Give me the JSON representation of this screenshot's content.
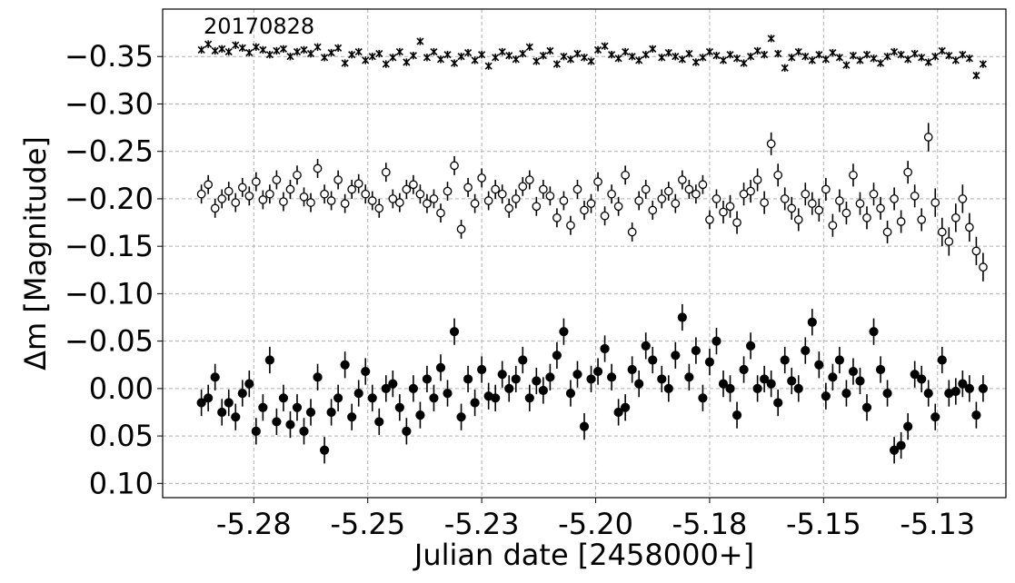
{
  "chart_data": {
    "type": "scatter",
    "xlabel": "Julian date [2458000+]",
    "ylabel": "Δm [Magnitude]",
    "annotation": "20170828",
    "xlim": [
      -5.3,
      -5.115
    ],
    "ylim": [
      0.115,
      -0.4
    ],
    "y_inverted": true,
    "grid": true,
    "x_ticks": [
      -5.28,
      -5.255,
      -5.23,
      -5.205,
      -5.18,
      -5.155,
      -5.13
    ],
    "x_tick_labels": [
      "-5.28",
      "-5.25",
      "-5.23",
      "-5.20",
      "-5.18",
      "-5.15",
      "-5.13"
    ],
    "y_ticks": [
      -0.35,
      -0.3,
      -0.25,
      -0.2,
      -0.15,
      -0.1,
      -0.05,
      0.0,
      0.05,
      0.1
    ],
    "y_tick_labels": [
      "−0.35",
      "−0.30",
      "−0.25",
      "−0.20",
      "−0.15",
      "−0.10",
      "−0.05",
      "0.00",
      "0.05",
      "0.10"
    ],
    "series": [
      {
        "marker": "x",
        "color": "#000000",
        "x": [
          -5.2915,
          -5.29,
          -5.2885,
          -5.287,
          -5.2855,
          -5.284,
          -5.2825,
          -5.281,
          -5.2795,
          -5.278,
          -5.2765,
          -5.275,
          -5.2735,
          -5.272,
          -5.2705,
          -5.269,
          -5.2675,
          -5.266,
          -5.2645,
          -5.263,
          -5.2615,
          -5.26,
          -5.2585,
          -5.257,
          -5.2555,
          -5.254,
          -5.2525,
          -5.251,
          -5.2495,
          -5.248,
          -5.2465,
          -5.245,
          -5.2435,
          -5.242,
          -5.2405,
          -5.239,
          -5.2375,
          -5.236,
          -5.2345,
          -5.233,
          -5.2315,
          -5.23,
          -5.2285,
          -5.227,
          -5.2255,
          -5.224,
          -5.2225,
          -5.221,
          -5.2195,
          -5.218,
          -5.2165,
          -5.215,
          -5.2135,
          -5.212,
          -5.2105,
          -5.209,
          -5.2075,
          -5.206,
          -5.2045,
          -5.203,
          -5.2015,
          -5.2,
          -5.1985,
          -5.197,
          -5.1955,
          -5.194,
          -5.1925,
          -5.1905,
          -5.189,
          -5.1875,
          -5.186,
          -5.1845,
          -5.183,
          -5.1815,
          -5.18,
          -5.1785,
          -5.177,
          -5.1755,
          -5.174,
          -5.1725,
          -5.171,
          -5.1695,
          -5.168,
          -5.1665,
          -5.165,
          -5.1635,
          -5.162,
          -5.1605,
          -5.159,
          -5.1575,
          -5.156,
          -5.1545,
          -5.153,
          -5.1515,
          -5.15,
          -5.1485,
          -5.147,
          -5.1455,
          -5.144,
          -5.1425,
          -5.141,
          -5.1395,
          -5.138,
          -5.1365,
          -5.135,
          -5.1335,
          -5.132,
          -5.1305,
          -5.129,
          -5.1275,
          -5.126,
          -5.1245,
          -5.123,
          -5.1215,
          -5.12
        ],
        "y": [
          -0.357,
          -0.363,
          -0.356,
          -0.358,
          -0.355,
          -0.362,
          -0.359,
          -0.354,
          -0.36,
          -0.357,
          -0.352,
          -0.356,
          -0.358,
          -0.35,
          -0.355,
          -0.357,
          -0.353,
          -0.36,
          -0.349,
          -0.354,
          -0.359,
          -0.343,
          -0.352,
          -0.355,
          -0.346,
          -0.35,
          -0.353,
          -0.342,
          -0.349,
          -0.355,
          -0.344,
          -0.351,
          -0.366,
          -0.349,
          -0.355,
          -0.347,
          -0.352,
          -0.343,
          -0.35,
          -0.354,
          -0.346,
          -0.352,
          -0.34,
          -0.349,
          -0.355,
          -0.351,
          -0.347,
          -0.353,
          -0.36,
          -0.345,
          -0.351,
          -0.356,
          -0.342,
          -0.35,
          -0.347,
          -0.353,
          -0.349,
          -0.345,
          -0.357,
          -0.361,
          -0.352,
          -0.348,
          -0.355,
          -0.35,
          -0.346,
          -0.352,
          -0.358,
          -0.349,
          -0.354,
          -0.35,
          -0.347,
          -0.353,
          -0.344,
          -0.349,
          -0.355,
          -0.351,
          -0.346,
          -0.352,
          -0.348,
          -0.343,
          -0.35,
          -0.356,
          -0.352,
          -0.369,
          -0.353,
          -0.338,
          -0.349,
          -0.355,
          -0.35,
          -0.346,
          -0.352,
          -0.347,
          -0.354,
          -0.349,
          -0.341,
          -0.351,
          -0.346,
          -0.352,
          -0.348,
          -0.343,
          -0.35,
          -0.355,
          -0.352,
          -0.347,
          -0.353,
          -0.349,
          -0.344,
          -0.35,
          -0.356,
          -0.351,
          -0.346,
          -0.352,
          -0.348,
          -0.33,
          -0.342
        ],
        "yerr": [
          0.004,
          0.004,
          0.004,
          0.004,
          0.004,
          0.004,
          0.004,
          0.004,
          0.004,
          0.004,
          0.004,
          0.004,
          0.004,
          0.004,
          0.004,
          0.004,
          0.004,
          0.004,
          0.004,
          0.004,
          0.004,
          0.004,
          0.004,
          0.004,
          0.004,
          0.004,
          0.004,
          0.004,
          0.004,
          0.004,
          0.004,
          0.004,
          0.004,
          0.004,
          0.004,
          0.004,
          0.004,
          0.004,
          0.004,
          0.004,
          0.004,
          0.004,
          0.004,
          0.004,
          0.004,
          0.004,
          0.004,
          0.004,
          0.004,
          0.004,
          0.004,
          0.004,
          0.004,
          0.004,
          0.004,
          0.004,
          0.004,
          0.004,
          0.004,
          0.004,
          0.004,
          0.004,
          0.004,
          0.004,
          0.004,
          0.004,
          0.004,
          0.004,
          0.004,
          0.004,
          0.004,
          0.004,
          0.004,
          0.004,
          0.004,
          0.004,
          0.004,
          0.004,
          0.004,
          0.004,
          0.004,
          0.004,
          0.004,
          0.004,
          0.004,
          0.004,
          0.004,
          0.004,
          0.004,
          0.004,
          0.004,
          0.004,
          0.004,
          0.004,
          0.004,
          0.004,
          0.004,
          0.004,
          0.004,
          0.004,
          0.004,
          0.004,
          0.004,
          0.004,
          0.004,
          0.004,
          0.004,
          0.004,
          0.004,
          0.004,
          0.004,
          0.004,
          0.004,
          0.004,
          0.004
        ]
      },
      {
        "marker": "o-open",
        "color": "#000000",
        "x": [
          -5.2915,
          -5.29,
          -5.2885,
          -5.287,
          -5.2855,
          -5.284,
          -5.2825,
          -5.281,
          -5.2795,
          -5.278,
          -5.2765,
          -5.275,
          -5.2735,
          -5.272,
          -5.2705,
          -5.269,
          -5.2675,
          -5.266,
          -5.2645,
          -5.263,
          -5.2615,
          -5.26,
          -5.2585,
          -5.257,
          -5.2555,
          -5.254,
          -5.2525,
          -5.251,
          -5.2495,
          -5.248,
          -5.2465,
          -5.245,
          -5.2435,
          -5.242,
          -5.2405,
          -5.239,
          -5.2375,
          -5.236,
          -5.2345,
          -5.233,
          -5.2315,
          -5.23,
          -5.2285,
          -5.227,
          -5.2255,
          -5.224,
          -5.2225,
          -5.221,
          -5.2195,
          -5.218,
          -5.2165,
          -5.215,
          -5.2135,
          -5.212,
          -5.2105,
          -5.209,
          -5.2075,
          -5.206,
          -5.2045,
          -5.203,
          -5.2015,
          -5.2,
          -5.1985,
          -5.197,
          -5.1955,
          -5.194,
          -5.1925,
          -5.1905,
          -5.189,
          -5.1875,
          -5.186,
          -5.1845,
          -5.183,
          -5.1815,
          -5.18,
          -5.1785,
          -5.177,
          -5.1755,
          -5.174,
          -5.1725,
          -5.171,
          -5.1695,
          -5.168,
          -5.1665,
          -5.165,
          -5.1635,
          -5.162,
          -5.1605,
          -5.159,
          -5.1575,
          -5.156,
          -5.1545,
          -5.153,
          -5.1515,
          -5.15,
          -5.1485,
          -5.147,
          -5.1455,
          -5.144,
          -5.1425,
          -5.141,
          -5.1395,
          -5.138,
          -5.1365,
          -5.135,
          -5.1335,
          -5.132,
          -5.1305,
          -5.129,
          -5.1275,
          -5.126,
          -5.1245,
          -5.123,
          -5.1215,
          -5.12
        ],
        "y": [
          -0.205,
          -0.215,
          -0.19,
          -0.2,
          -0.208,
          -0.196,
          -0.212,
          -0.203,
          -0.218,
          -0.199,
          -0.205,
          -0.22,
          -0.197,
          -0.21,
          -0.225,
          -0.202,
          -0.196,
          -0.232,
          -0.205,
          -0.198,
          -0.22,
          -0.195,
          -0.21,
          -0.216,
          -0.205,
          -0.198,
          -0.19,
          -0.228,
          -0.2,
          -0.196,
          -0.21,
          -0.215,
          -0.205,
          -0.195,
          -0.2,
          -0.185,
          -0.208,
          -0.235,
          -0.168,
          -0.212,
          -0.195,
          -0.222,
          -0.198,
          -0.21,
          -0.205,
          -0.19,
          -0.2,
          -0.213,
          -0.22,
          -0.192,
          -0.21,
          -0.203,
          -0.18,
          -0.198,
          -0.172,
          -0.21,
          -0.188,
          -0.195,
          -0.218,
          -0.182,
          -0.205,
          -0.192,
          -0.225,
          -0.165,
          -0.198,
          -0.21,
          -0.188,
          -0.2,
          -0.208,
          -0.195,
          -0.22,
          -0.21,
          -0.205,
          -0.215,
          -0.178,
          -0.2,
          -0.186,
          -0.192,
          -0.175,
          -0.205,
          -0.208,
          -0.22,
          -0.196,
          -0.258,
          -0.225,
          -0.2,
          -0.19,
          -0.178,
          -0.205,
          -0.195,
          -0.188,
          -0.21,
          -0.172,
          -0.198,
          -0.185,
          -0.225,
          -0.195,
          -0.18,
          -0.205,
          -0.19,
          -0.165,
          -0.2,
          -0.176,
          -0.228,
          -0.203,
          -0.178,
          -0.265,
          -0.196,
          -0.165,
          -0.155,
          -0.18,
          -0.2,
          -0.17,
          -0.145,
          -0.128
        ],
        "yerr": [
          0.01,
          0.01,
          0.01,
          0.01,
          0.01,
          0.01,
          0.01,
          0.01,
          0.01,
          0.01,
          0.01,
          0.01,
          0.01,
          0.01,
          0.01,
          0.01,
          0.01,
          0.01,
          0.01,
          0.01,
          0.01,
          0.01,
          0.01,
          0.01,
          0.01,
          0.01,
          0.01,
          0.01,
          0.01,
          0.01,
          0.01,
          0.01,
          0.01,
          0.01,
          0.01,
          0.01,
          0.01,
          0.01,
          0.01,
          0.01,
          0.01,
          0.01,
          0.01,
          0.01,
          0.01,
          0.01,
          0.01,
          0.01,
          0.01,
          0.01,
          0.01,
          0.01,
          0.01,
          0.01,
          0.01,
          0.01,
          0.01,
          0.01,
          0.01,
          0.01,
          0.01,
          0.01,
          0.01,
          0.01,
          0.01,
          0.01,
          0.01,
          0.01,
          0.01,
          0.01,
          0.01,
          0.01,
          0.01,
          0.01,
          0.01,
          0.01,
          0.012,
          0.012,
          0.012,
          0.012,
          0.012,
          0.012,
          0.012,
          0.012,
          0.012,
          0.012,
          0.012,
          0.012,
          0.012,
          0.012,
          0.012,
          0.012,
          0.012,
          0.012,
          0.012,
          0.012,
          0.012,
          0.012,
          0.012,
          0.012,
          0.012,
          0.012,
          0.012,
          0.012,
          0.012,
          0.012,
          0.015,
          0.015,
          0.015,
          0.015,
          0.015,
          0.015,
          0.015,
          0.015,
          0.015
        ]
      },
      {
        "marker": "o-filled",
        "color": "#000000",
        "x": [
          -5.2915,
          -5.29,
          -5.2885,
          -5.287,
          -5.2855,
          -5.284,
          -5.2825,
          -5.281,
          -5.2795,
          -5.278,
          -5.2765,
          -5.275,
          -5.2735,
          -5.272,
          -5.2705,
          -5.269,
          -5.2675,
          -5.266,
          -5.2645,
          -5.263,
          -5.2615,
          -5.26,
          -5.2585,
          -5.257,
          -5.2555,
          -5.254,
          -5.2525,
          -5.251,
          -5.2495,
          -5.248,
          -5.2465,
          -5.245,
          -5.2435,
          -5.242,
          -5.2405,
          -5.239,
          -5.2375,
          -5.236,
          -5.2345,
          -5.233,
          -5.2315,
          -5.23,
          -5.2285,
          -5.227,
          -5.2255,
          -5.224,
          -5.2225,
          -5.221,
          -5.2195,
          -5.218,
          -5.2165,
          -5.215,
          -5.2135,
          -5.212,
          -5.2105,
          -5.209,
          -5.2075,
          -5.206,
          -5.2045,
          -5.203,
          -5.2015,
          -5.2,
          -5.1985,
          -5.197,
          -5.1955,
          -5.194,
          -5.1925,
          -5.1905,
          -5.189,
          -5.1875,
          -5.186,
          -5.1845,
          -5.183,
          -5.1815,
          -5.18,
          -5.1785,
          -5.177,
          -5.1755,
          -5.174,
          -5.1725,
          -5.171,
          -5.1695,
          -5.168,
          -5.1665,
          -5.165,
          -5.1635,
          -5.162,
          -5.1605,
          -5.159,
          -5.1575,
          -5.156,
          -5.1545,
          -5.153,
          -5.1515,
          -5.15,
          -5.1485,
          -5.147,
          -5.1455,
          -5.144,
          -5.1425,
          -5.141,
          -5.1395,
          -5.138,
          -5.1365,
          -5.135,
          -5.1335,
          -5.132,
          -5.1305,
          -5.129,
          -5.1275,
          -5.126,
          -5.1245,
          -5.123,
          -5.1215,
          -5.12
        ],
        "y": [
          0.015,
          0.01,
          -0.012,
          0.025,
          0.015,
          0.03,
          0.005,
          -0.005,
          0.045,
          0.02,
          -0.03,
          0.035,
          0.01,
          0.038,
          0.02,
          0.045,
          0.025,
          -0.012,
          0.065,
          0.025,
          0.01,
          -0.025,
          0.03,
          0.005,
          -0.018,
          0.01,
          0.035,
          0.0,
          -0.005,
          0.02,
          0.045,
          0.0,
          0.028,
          -0.01,
          0.01,
          -0.022,
          0.005,
          -0.06,
          0.03,
          -0.01,
          0.015,
          -0.02,
          0.008,
          0.01,
          -0.015,
          0.0,
          -0.01,
          -0.03,
          0.01,
          -0.008,
          0.002,
          -0.012,
          -0.035,
          -0.06,
          0.005,
          -0.015,
          0.04,
          -0.01,
          -0.018,
          -0.042,
          -0.012,
          0.025,
          0.02,
          -0.02,
          -0.005,
          -0.045,
          -0.03,
          -0.01,
          0.0,
          -0.035,
          -0.075,
          -0.012,
          -0.04,
          0.01,
          -0.028,
          -0.05,
          -0.005,
          0.0,
          0.028,
          -0.02,
          -0.045,
          0.0,
          -0.01,
          -0.005,
          0.015,
          -0.03,
          -0.008,
          0.0,
          -0.04,
          -0.07,
          -0.025,
          0.008,
          -0.012,
          -0.03,
          0.005,
          -0.018,
          -0.008,
          0.02,
          -0.06,
          -0.02,
          0.005,
          0.065,
          0.06,
          0.04,
          -0.015,
          -0.01,
          0.005,
          0.03,
          -0.03,
          0.005,
          0.003,
          -0.005,
          0.0,
          0.028,
          0.0
        ]
      }
    ]
  }
}
